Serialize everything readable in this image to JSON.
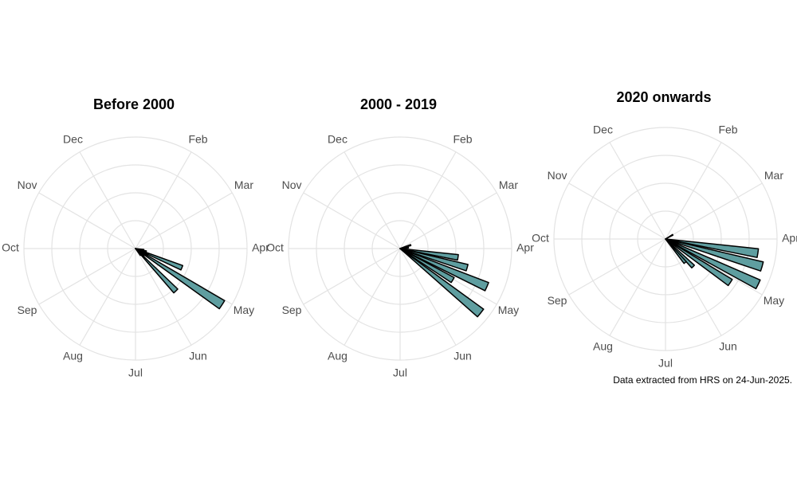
{
  "chart_data": [
    {
      "type": "polar_bar",
      "title": "Before 2000",
      "color": "#5f9ea0",
      "grid": true,
      "xlim": [
        0,
        12
      ],
      "xticks": [
        {
          "value": 1,
          "label": "Feb"
        },
        {
          "value": 2,
          "label": "Mar"
        },
        {
          "value": 3,
          "label": "Apr"
        },
        {
          "value": 4,
          "label": "May"
        },
        {
          "value": 5,
          "label": "Jun"
        },
        {
          "value": 6,
          "label": "Jul"
        },
        {
          "value": 7,
          "label": "Aug"
        },
        {
          "value": 8,
          "label": "Sep"
        },
        {
          "value": 9,
          "label": "Oct"
        },
        {
          "value": 10,
          "label": "Nov"
        },
        {
          "value": 11,
          "label": "Dec"
        }
      ],
      "ylim": [
        0,
        4
      ],
      "yticks": [
        1,
        2,
        3,
        4
      ],
      "x": [
        3.3,
        3.5,
        3.75,
        3.9,
        4.1,
        4.3,
        4.55,
        4.75
      ],
      "values": [
        0.3,
        0.4,
        1.8,
        0.5,
        3.7,
        0.4,
        2.1,
        0.3
      ]
    },
    {
      "type": "polar_bar",
      "title": "2000 - 2019",
      "color": "#5f9ea0",
      "grid": true,
      "xlim": [
        0,
        12
      ],
      "xticks": [
        {
          "value": 1,
          "label": "Feb"
        },
        {
          "value": 2,
          "label": "Mar"
        },
        {
          "value": 3,
          "label": "Apr"
        },
        {
          "value": 4,
          "label": "May"
        },
        {
          "value": 5,
          "label": "Jun"
        },
        {
          "value": 6,
          "label": "Jul"
        },
        {
          "value": 7,
          "label": "Aug"
        },
        {
          "value": 8,
          "label": "Sep"
        },
        {
          "value": 9,
          "label": "Oct"
        },
        {
          "value": 10,
          "label": "Nov"
        },
        {
          "value": 11,
          "label": "Dec"
        }
      ],
      "ylim": [
        0,
        4
      ],
      "yticks": [
        1,
        2,
        3,
        4
      ],
      "x": [
        2.4,
        2.8,
        3.29,
        3.53,
        3.79,
        4.03,
        4.29
      ],
      "values": [
        0.4,
        0.3,
        2.1,
        2.5,
        3.4,
        2.2,
        3.7
      ]
    },
    {
      "type": "polar_bar",
      "title": "2020 onwards",
      "color": "#5f9ea0",
      "grid": true,
      "xlim": [
        0,
        12
      ],
      "xticks": [
        {
          "value": 1,
          "label": "Feb"
        },
        {
          "value": 2,
          "label": "Mar"
        },
        {
          "value": 3,
          "label": "Apr"
        },
        {
          "value": 4,
          "label": "May"
        },
        {
          "value": 5,
          "label": "Jun"
        },
        {
          "value": 6,
          "label": "Jul"
        },
        {
          "value": 7,
          "label": "Aug"
        },
        {
          "value": 8,
          "label": "Sep"
        },
        {
          "value": 9,
          "label": "Oct"
        },
        {
          "value": 10,
          "label": "Nov"
        },
        {
          "value": 11,
          "label": "Dec"
        }
      ],
      "ylim": [
        0,
        4
      ],
      "yticks": [
        1,
        2,
        3,
        4
      ],
      "x": [
        2.0,
        3.29,
        3.53,
        3.87,
        4.13,
        4.5,
        4.67
      ],
      "values": [
        0.3,
        3.35,
        3.6,
        3.7,
        2.8,
        1.4,
        1.1
      ]
    }
  ],
  "caption": "Data extracted from HRS on 24-Jun-2025."
}
